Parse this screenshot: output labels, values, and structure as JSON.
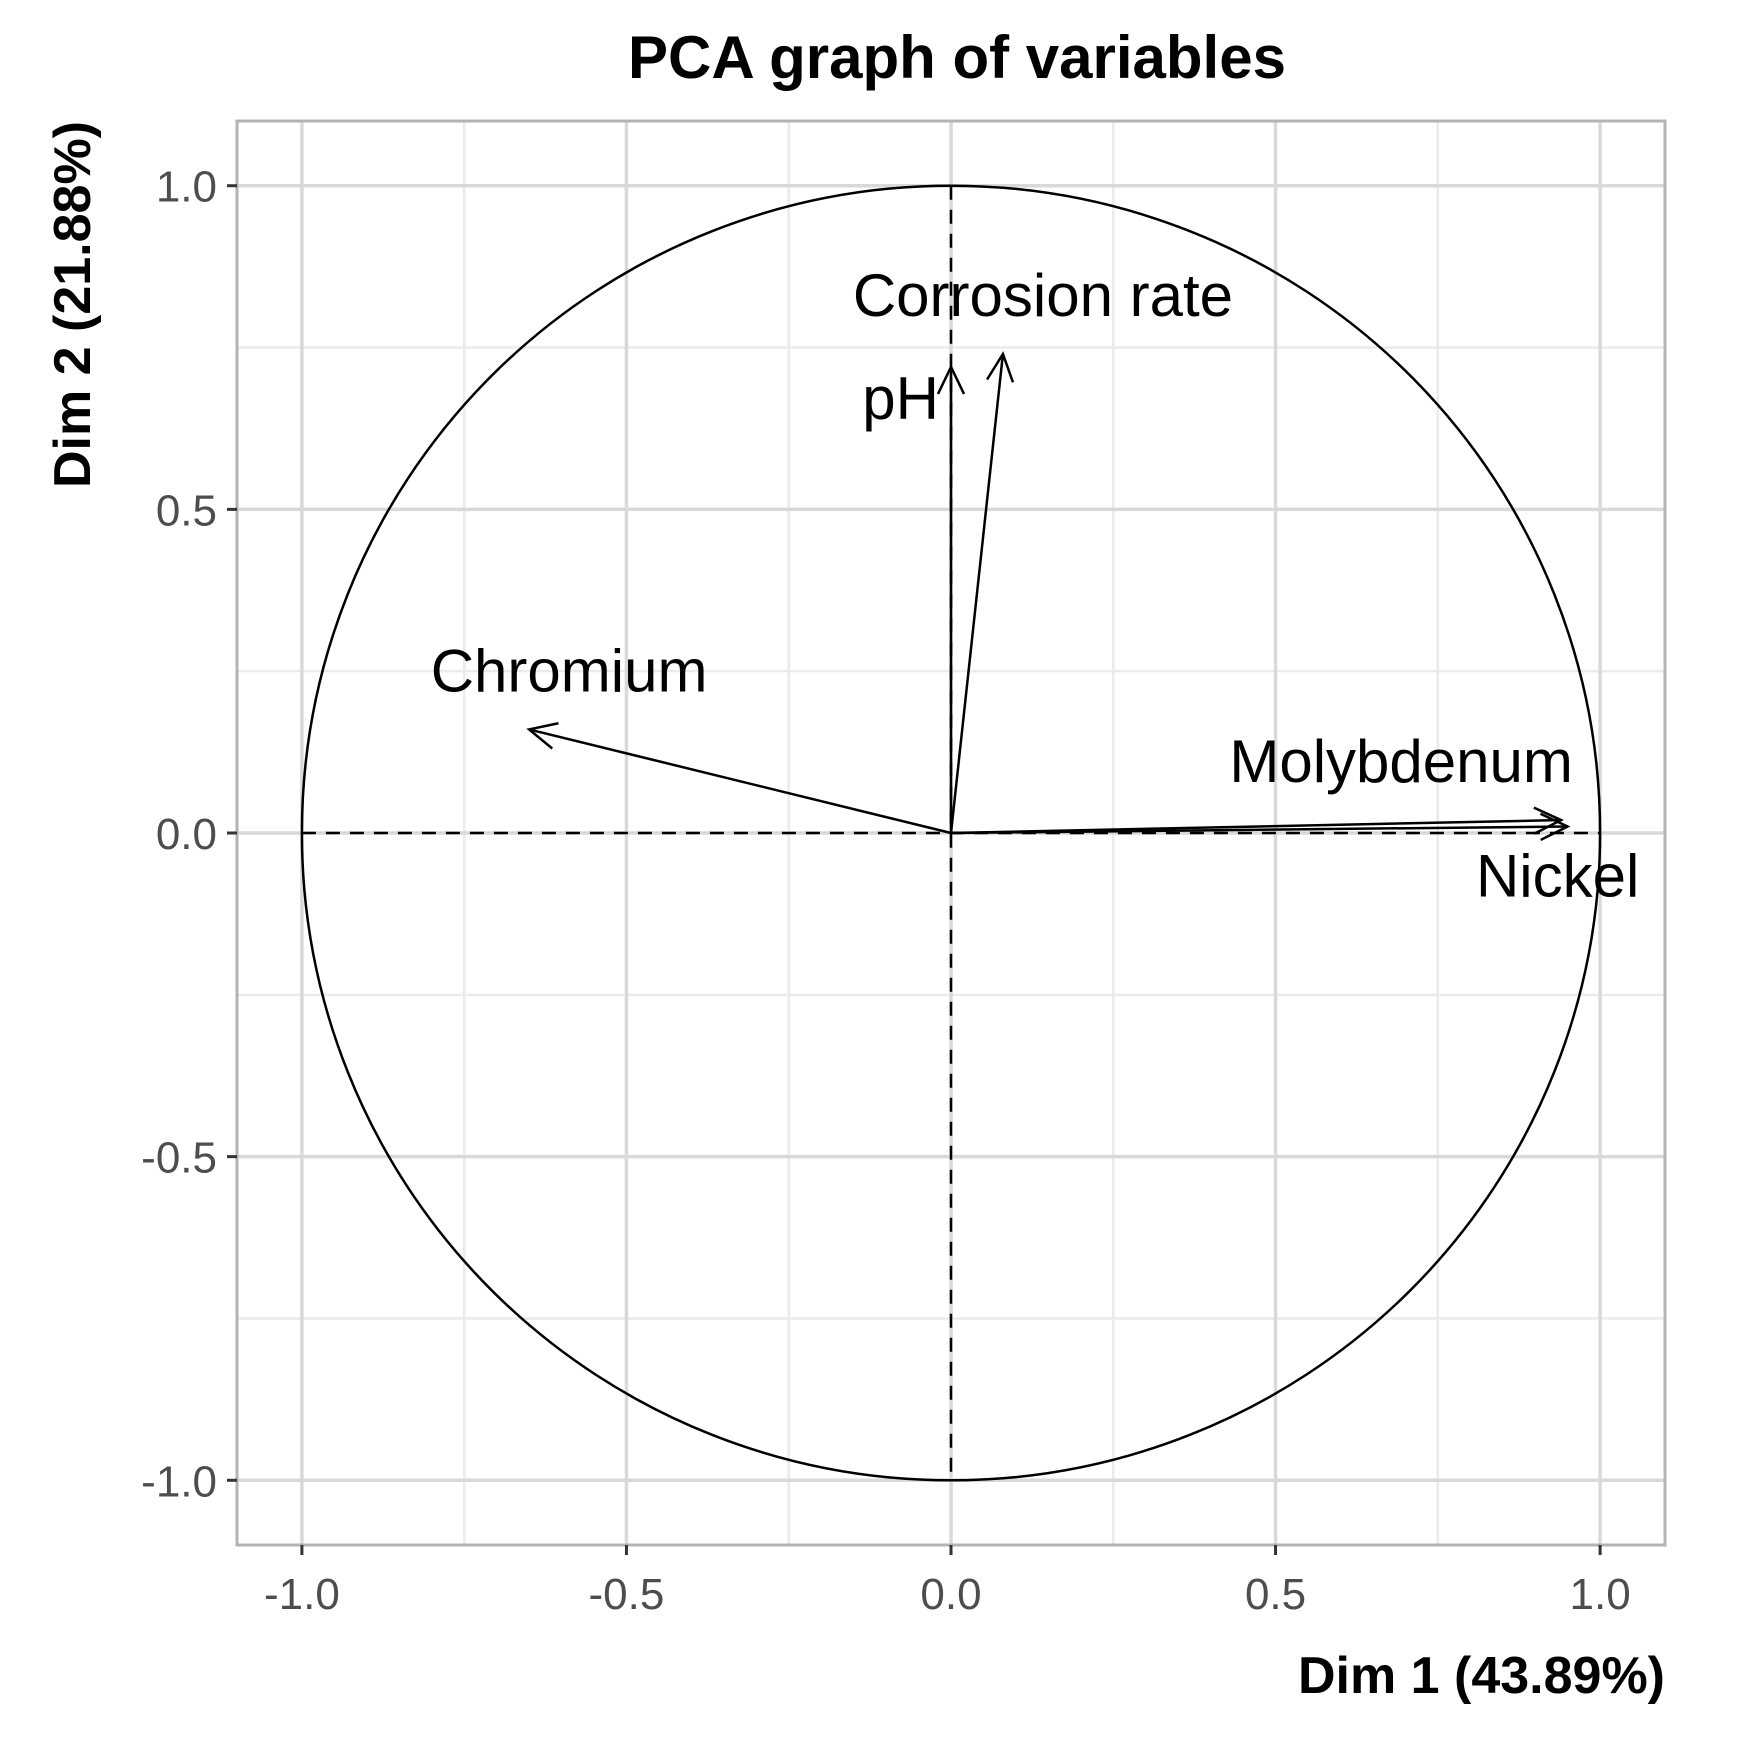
{
  "chart_data": {
    "type": "scatter",
    "subtype": "pca-correlation-circle",
    "title": "PCA graph of variables",
    "xlabel": "Dim 1 (43.89%)",
    "ylabel": "Dim 2 (21.88%)",
    "xlim": [
      -1.1,
      1.1
    ],
    "ylim": [
      -1.1,
      1.1
    ],
    "xticks": [
      -1.0,
      -0.5,
      0.0,
      0.5,
      1.0
    ],
    "yticks": [
      -1.0,
      -0.5,
      0.0,
      0.5,
      1.0
    ],
    "tick_labels_x": [
      "-1.0",
      "-0.5",
      "0.0",
      "0.5",
      "1.0"
    ],
    "tick_labels_y": [
      "-1.0",
      "-0.5",
      "0.0",
      "0.5",
      "1.0"
    ],
    "grid": true,
    "unit_circle": true,
    "variables": [
      {
        "name": "Corrosion rate",
        "x": 0.08,
        "y": 0.74
      },
      {
        "name": "pH",
        "x": 0.0,
        "y": 0.72
      },
      {
        "name": "Chromium",
        "x": -0.65,
        "y": 0.16
      },
      {
        "name": "Molybdenum",
        "x": 0.94,
        "y": 0.02
      },
      {
        "name": "Nickel",
        "x": 0.95,
        "y": 0.01
      }
    ]
  }
}
